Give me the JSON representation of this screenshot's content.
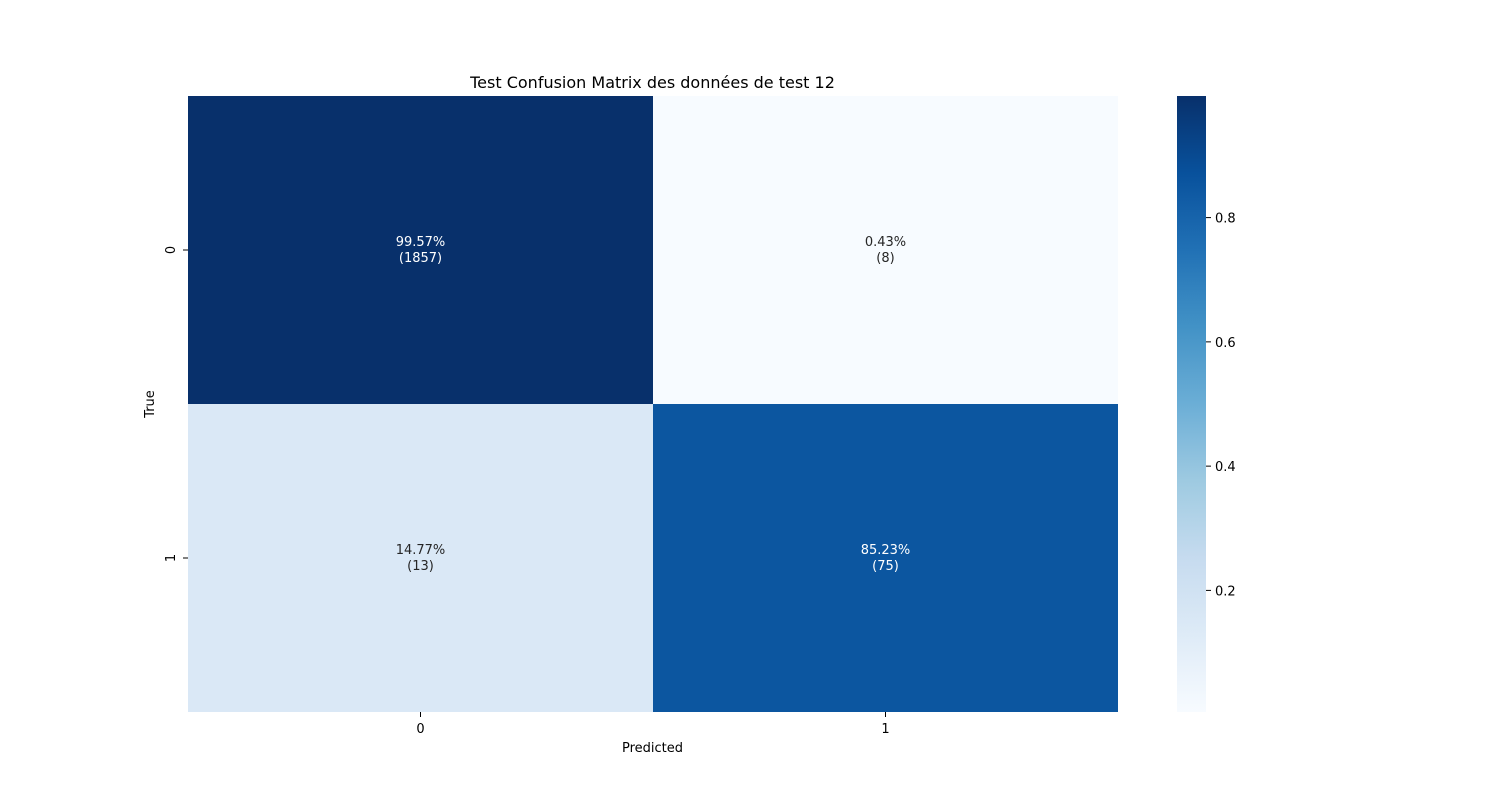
{
  "chart_data": {
    "type": "heatmap",
    "title": "Test Confusion Matrix des données de test 12",
    "xlabel": "Predicted",
    "ylabel": "True",
    "x_categories": [
      "0",
      "1"
    ],
    "y_categories": [
      "0",
      "1"
    ],
    "values": [
      [
        0.9957,
        0.0043
      ],
      [
        0.1477,
        0.8523
      ]
    ],
    "cell_labels": [
      [
        "99.57%\n(1857)",
        "0.43%\n(8)"
      ],
      [
        "14.77%\n(13)",
        "85.23%\n(75)"
      ]
    ],
    "counts": [
      [
        1857,
        8
      ],
      [
        13,
        75
      ]
    ],
    "colormap": "Blues",
    "colorbar": {
      "range": [
        0.0043,
        0.9957
      ],
      "ticks": [
        0.2,
        0.4,
        0.6,
        0.8
      ],
      "tick_labels": [
        "0.2",
        "0.4",
        "0.6",
        "0.8"
      ]
    },
    "grid": false
  }
}
